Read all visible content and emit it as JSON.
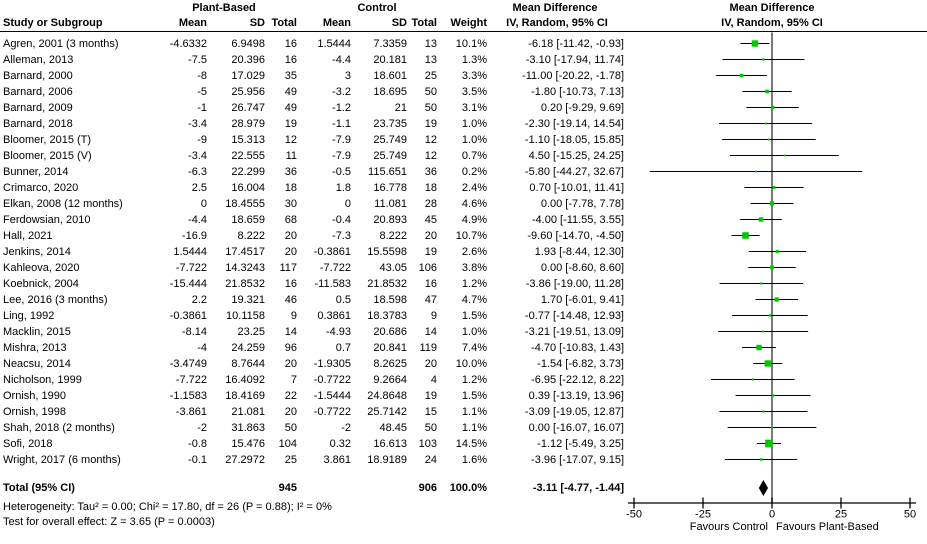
{
  "header": {
    "col_study": "Study or Subgroup",
    "group1": "Plant-Based",
    "group2": "Control",
    "col_mean": "Mean",
    "col_sd": "SD",
    "col_total": "Total",
    "col_weight": "Weight",
    "md_title": "Mean Difference",
    "md_sub": "IV, Random, 95% CI",
    "plot_title": "Mean Difference",
    "plot_sub": "IV, Random, 95% CI"
  },
  "chart_data": {
    "type": "forest",
    "effect_measure": "Mean Difference, IV, Random, 95% CI",
    "x_axis": {
      "range": [
        -50,
        50
      ],
      "ticks": [
        -50,
        -25,
        0,
        25,
        50
      ],
      "favours_left": "Favours Control",
      "favours_right": "Favours Plant-Based"
    },
    "colors": {
      "square": "#00c800",
      "ci_line": "#000000",
      "diamond": "#000000",
      "zero_line": "#404040",
      "axis": "#000000"
    },
    "studies": [
      {
        "name": "Agren, 2001 (3 months)",
        "mean1": "-4.6332",
        "sd1": "6.9498",
        "n1": "16",
        "mean2": "1.5444",
        "sd2": "7.3359",
        "n2": "13",
        "weight": "10.1%",
        "w": 10.1,
        "md": -6.18,
        "lo": -11.42,
        "hi": -0.93,
        "ci": "-6.18 [-11.42, -0.93]"
      },
      {
        "name": "Alleman, 2013",
        "mean1": "-7.5",
        "sd1": "20.396",
        "n1": "16",
        "mean2": "-4.4",
        "sd2": "20.181",
        "n2": "13",
        "weight": "1.3%",
        "w": 1.3,
        "md": -3.1,
        "lo": -17.94,
        "hi": 11.74,
        "ci": "-3.10 [-17.94, 11.74]"
      },
      {
        "name": "Barnard, 2000",
        "mean1": "-8",
        "sd1": "17.029",
        "n1": "35",
        "mean2": "3",
        "sd2": "18.601",
        "n2": "25",
        "weight": "3.3%",
        "w": 3.3,
        "md": -11.0,
        "lo": -20.22,
        "hi": -1.78,
        "ci": "-11.00 [-20.22, -1.78]"
      },
      {
        "name": "Barnard, 2006",
        "mean1": "-5",
        "sd1": "25.956",
        "n1": "49",
        "mean2": "-3.2",
        "sd2": "18.695",
        "n2": "50",
        "weight": "3.5%",
        "w": 3.5,
        "md": -1.8,
        "lo": -10.73,
        "hi": 7.13,
        "ci": "-1.80 [-10.73, 7.13]"
      },
      {
        "name": "Barnard, 2009",
        "mean1": "-1",
        "sd1": "26.747",
        "n1": "49",
        "mean2": "-1.2",
        "sd2": "21",
        "n2": "50",
        "weight": "3.1%",
        "w": 3.1,
        "md": 0.2,
        "lo": -9.29,
        "hi": 9.69,
        "ci": "0.20 [-9.29, 9.69]"
      },
      {
        "name": "Barnard, 2018",
        "mean1": "-3.4",
        "sd1": "28.979",
        "n1": "19",
        "mean2": "-1.1",
        "sd2": "23.735",
        "n2": "19",
        "weight": "1.0%",
        "w": 1.0,
        "md": -2.3,
        "lo": -19.14,
        "hi": 14.54,
        "ci": "-2.30 [-19.14, 14.54]"
      },
      {
        "name": "Bloomer, 2015 (T)",
        "mean1": "-9",
        "sd1": "15.313",
        "n1": "12",
        "mean2": "-7.9",
        "sd2": "25.749",
        "n2": "12",
        "weight": "1.0%",
        "w": 1.0,
        "md": -1.1,
        "lo": -18.05,
        "hi": 15.85,
        "ci": "-1.10 [-18.05, 15.85]"
      },
      {
        "name": "Bloomer, 2015 (V)",
        "mean1": "-3.4",
        "sd1": "22.555",
        "n1": "11",
        "mean2": "-7.9",
        "sd2": "25.749",
        "n2": "12",
        "weight": "0.7%",
        "w": 0.7,
        "md": 4.5,
        "lo": -15.25,
        "hi": 24.25,
        "ci": "4.50 [-15.25, 24.25]"
      },
      {
        "name": "Bunner, 2014",
        "mean1": "-6.3",
        "sd1": "22.299",
        "n1": "36",
        "mean2": "-0.5",
        "sd2": "115.651",
        "n2": "36",
        "weight": "0.2%",
        "w": 0.2,
        "md": -5.8,
        "lo": -44.27,
        "hi": 32.67,
        "ci": "-5.80 [-44.27, 32.67]"
      },
      {
        "name": "Crimarco, 2020",
        "mean1": "2.5",
        "sd1": "16.004",
        "n1": "18",
        "mean2": "1.8",
        "sd2": "16.778",
        "n2": "18",
        "weight": "2.4%",
        "w": 2.4,
        "md": 0.7,
        "lo": -10.01,
        "hi": 11.41,
        "ci": "0.70 [-10.01, 11.41]"
      },
      {
        "name": "Elkan, 2008 (12 months)",
        "mean1": "0",
        "sd1": "18.4555",
        "n1": "30",
        "mean2": "0",
        "sd2": "11.081",
        "n2": "28",
        "weight": "4.6%",
        "w": 4.6,
        "md": 0.0,
        "lo": -7.78,
        "hi": 7.78,
        "ci": "0.00 [-7.78, 7.78]"
      },
      {
        "name": "Ferdowsian, 2010",
        "mean1": "-4.4",
        "sd1": "18.659",
        "n1": "68",
        "mean2": "-0.4",
        "sd2": "20.893",
        "n2": "45",
        "weight": "4.9%",
        "w": 4.9,
        "md": -4.0,
        "lo": -11.55,
        "hi": 3.55,
        "ci": "-4.00 [-11.55, 3.55]"
      },
      {
        "name": "Hall, 2021",
        "mean1": "-16.9",
        "sd1": "8.222",
        "n1": "20",
        "mean2": "-7.3",
        "sd2": "8.222",
        "n2": "20",
        "weight": "10.7%",
        "w": 10.7,
        "md": -9.6,
        "lo": -14.7,
        "hi": -4.5,
        "ci": "-9.60 [-14.70, -4.50]"
      },
      {
        "name": "Jenkins, 2014",
        "mean1": "1.5444",
        "sd1": "17.4517",
        "n1": "20",
        "mean2": "-0.3861",
        "sd2": "15.5598",
        "n2": "19",
        "weight": "2.6%",
        "w": 2.6,
        "md": 1.93,
        "lo": -8.44,
        "hi": 12.3,
        "ci": "1.93 [-8.44, 12.30]"
      },
      {
        "name": "Kahleova, 2020",
        "mean1": "-7.722",
        "sd1": "14.3243",
        "n1": "117",
        "mean2": "-7.722",
        "sd2": "43.05",
        "n2": "106",
        "weight": "3.8%",
        "w": 3.8,
        "md": 0.0,
        "lo": -8.6,
        "hi": 8.6,
        "ci": "0.00 [-8.60, 8.60]"
      },
      {
        "name": "Koebnick, 2004",
        "mean1": "-15.444",
        "sd1": "21.8532",
        "n1": "16",
        "mean2": "-11.583",
        "sd2": "21.8532",
        "n2": "16",
        "weight": "1.2%",
        "w": 1.2,
        "md": -3.86,
        "lo": -19.0,
        "hi": 11.28,
        "ci": "-3.86 [-19.00, 11.28]"
      },
      {
        "name": "Lee, 2016 (3 months)",
        "mean1": "2.2",
        "sd1": "19.321",
        "n1": "46",
        "mean2": "0.5",
        "sd2": "18.598",
        "n2": "47",
        "weight": "4.7%",
        "w": 4.7,
        "md": 1.7,
        "lo": -6.01,
        "hi": 9.41,
        "ci": "1.70 [-6.01, 9.41]"
      },
      {
        "name": "Ling, 1992",
        "mean1": "-0.3861",
        "sd1": "10.1158",
        "n1": "9",
        "mean2": "0.3861",
        "sd2": "18.3783",
        "n2": "9",
        "weight": "1.5%",
        "w": 1.5,
        "md": -0.77,
        "lo": -14.48,
        "hi": 12.93,
        "ci": "-0.77 [-14.48, 12.93]"
      },
      {
        "name": "Macklin, 2015",
        "mean1": "-8.14",
        "sd1": "23.25",
        "n1": "14",
        "mean2": "-4.93",
        "sd2": "20.686",
        "n2": "14",
        "weight": "1.0%",
        "w": 1.0,
        "md": -3.21,
        "lo": -19.51,
        "hi": 13.09,
        "ci": "-3.21 [-19.51, 13.09]"
      },
      {
        "name": "Mishra, 2013",
        "mean1": "-4",
        "sd1": "24.259",
        "n1": "96",
        "mean2": "0.7",
        "sd2": "20.841",
        "n2": "119",
        "weight": "7.4%",
        "w": 7.4,
        "md": -4.7,
        "lo": -10.83,
        "hi": 1.43,
        "ci": "-4.70 [-10.83, 1.43]"
      },
      {
        "name": "Neacsu, 2014",
        "mean1": "-3.4749",
        "sd1": "8.7644",
        "n1": "20",
        "mean2": "-1.9305",
        "sd2": "8.2625",
        "n2": "20",
        "weight": "10.0%",
        "w": 10.0,
        "md": -1.54,
        "lo": -6.82,
        "hi": 3.73,
        "ci": "-1.54 [-6.82, 3.73]"
      },
      {
        "name": "Nicholson, 1999",
        "mean1": "-7.722",
        "sd1": "16.4092",
        "n1": "7",
        "mean2": "-0.7722",
        "sd2": "9.2664",
        "n2": "4",
        "weight": "1.2%",
        "w": 1.2,
        "md": -6.95,
        "lo": -22.12,
        "hi": 8.22,
        "ci": "-6.95 [-22.12, 8.22]"
      },
      {
        "name": "Ornish, 1990",
        "mean1": "-1.1583",
        "sd1": "18.4169",
        "n1": "22",
        "mean2": "-1.5444",
        "sd2": "24.8648",
        "n2": "19",
        "weight": "1.5%",
        "w": 1.5,
        "md": 0.39,
        "lo": -13.19,
        "hi": 13.96,
        "ci": "0.39 [-13.19, 13.96]"
      },
      {
        "name": "Ornish, 1998",
        "mean1": "-3.861",
        "sd1": "21.081",
        "n1": "20",
        "mean2": "-0.7722",
        "sd2": "25.7142",
        "n2": "15",
        "weight": "1.1%",
        "w": 1.1,
        "md": -3.09,
        "lo": -19.05,
        "hi": 12.87,
        "ci": "-3.09 [-19.05, 12.87]"
      },
      {
        "name": "Shah, 2018 (2 months)",
        "mean1": "-2",
        "sd1": "31.863",
        "n1": "50",
        "mean2": "-2",
        "sd2": "48.45",
        "n2": "50",
        "weight": "1.1%",
        "w": 1.1,
        "md": 0.0,
        "lo": -16.07,
        "hi": 16.07,
        "ci": "0.00 [-16.07, 16.07]"
      },
      {
        "name": "Sofi, 2018",
        "mean1": "-0.8",
        "sd1": "15.476",
        "n1": "104",
        "mean2": "0.32",
        "sd2": "16.613",
        "n2": "103",
        "weight": "14.5%",
        "w": 14.5,
        "md": -1.12,
        "lo": -5.49,
        "hi": 3.25,
        "ci": "-1.12 [-5.49, 3.25]"
      },
      {
        "name": "Wright, 2017 (6 months)",
        "mean1": "-0.1",
        "sd1": "27.2972",
        "n1": "25",
        "mean2": "3.861",
        "sd2": "18.9189",
        "n2": "24",
        "weight": "1.6%",
        "w": 1.6,
        "md": -3.96,
        "lo": -17.07,
        "hi": 9.15,
        "ci": "-3.96 [-17.07, 9.15]"
      }
    ],
    "total": {
      "label": "Total (95% CI)",
      "n1": "945",
      "n2": "906",
      "weight": "100.0%",
      "md": -3.11,
      "lo": -4.77,
      "hi": -1.44,
      "ci": "-3.11 [-4.77, -1.44]"
    },
    "heterogeneity": "Heterogeneity: Tau² = 0.00; Chi² = 17.80, df = 26 (P = 0.88); I² = 0%",
    "overall": "Test for overall effect: Z = 3.65 (P = 0.0003)"
  }
}
